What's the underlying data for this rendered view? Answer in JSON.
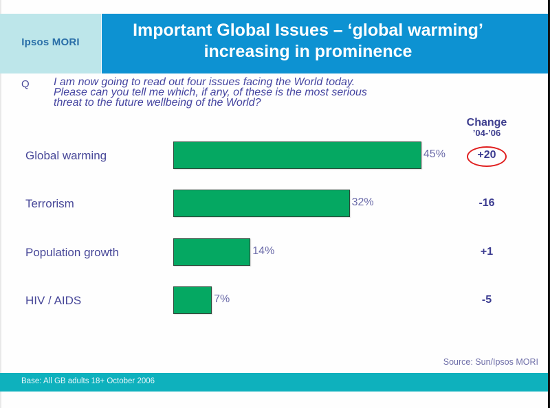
{
  "header": {
    "logo": "Ipsos MORI",
    "title_line1": "Important Global Issues – ‘global warming’",
    "title_line2": "increasing in prominence"
  },
  "question": {
    "marker": "Q",
    "line1": "I am now going to read out four issues facing the World today.",
    "line2": "Please can you tell me which, if any, of these is the most serious",
    "line3": "threat to the future wellbeing of the World?"
  },
  "change_column": {
    "heading": "Change",
    "period": "’04-’06"
  },
  "chart_data": {
    "type": "bar",
    "orientation": "horizontal",
    "title": "Important Global Issues – ‘global warming’ increasing in prominence",
    "xlabel": "",
    "ylabel": "",
    "xlim": [
      0,
      45
    ],
    "unit": "%",
    "categories": [
      "Global warming",
      "Terrorism",
      "Population growth",
      "HIV / AIDS"
    ],
    "values": [
      45,
      32,
      14,
      7
    ],
    "value_labels": [
      "45%",
      "32%",
      "14%",
      "7%"
    ],
    "change_04_06": [
      "+20",
      "-16",
      "+1",
      "-5"
    ],
    "highlighted_change": "+20",
    "bar_color": "#05a862",
    "grid": false,
    "legend": "none"
  },
  "footer": {
    "source": "Source: Sun/Ipsos MORI",
    "base": "Base: All GB adults 18+ October 2006"
  },
  "colors": {
    "logo_panel": "#bde6ea",
    "title_panel": "#0d92d2",
    "footer_bar": "#0eb1bd",
    "text": "#474798",
    "highlight": "#e02020"
  }
}
